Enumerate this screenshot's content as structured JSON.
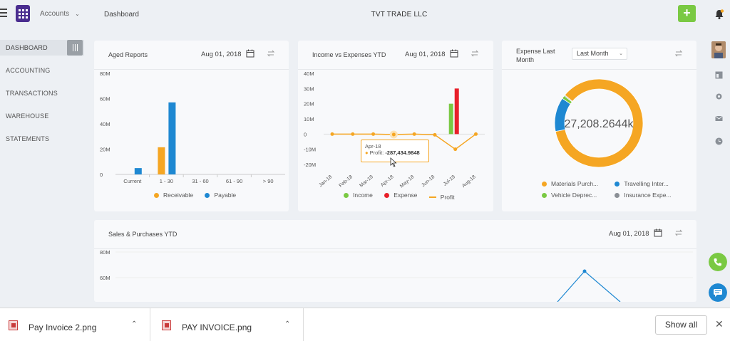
{
  "topbar": {
    "accounts_label": "Accounts",
    "breadcrumb": "Dashboard",
    "company": "TVT TRADE LLC",
    "add_label": "+",
    "accent": "#7ac943",
    "logo_color": "#4a2d8f"
  },
  "sidebar": {
    "items": [
      {
        "label": "DASHBOARD",
        "active": true
      },
      {
        "label": "ACCOUNTING"
      },
      {
        "label": "TRANSACTIONS"
      },
      {
        "label": "WAREHOUSE"
      },
      {
        "label": "STATEMENTS"
      }
    ]
  },
  "aged": {
    "title": "Aged Reports",
    "date": "Aug 01, 2018",
    "legend": [
      {
        "name": "Receivable",
        "color": "#f5a623"
      },
      {
        "name": "Payable",
        "color": "#1e88d2"
      }
    ]
  },
  "income": {
    "title": "Income vs Expenses YTD",
    "date": "Aug 01, 2018",
    "legend": [
      {
        "name": "Income",
        "color": "#7ac943"
      },
      {
        "name": "Expense",
        "color": "#e8202a"
      },
      {
        "name": "Profit",
        "color": "#f5a623"
      }
    ],
    "tooltip": {
      "month": "Apr-18",
      "label": "Profit:",
      "value": "-287,434.9848"
    }
  },
  "expense": {
    "title_line1": "Expense Last",
    "title_line2": "Month",
    "period": "Last Month",
    "center": "27,208.2644k",
    "legend": [
      {
        "name": "Materials Purch...",
        "color": "#f5a623"
      },
      {
        "name": "Travelling Inter...",
        "color": "#1e88d2"
      },
      {
        "name": "Vehicle Deprec...",
        "color": "#7ac943"
      },
      {
        "name": "Insurance Expe...",
        "color": "#8a8f95"
      }
    ]
  },
  "sales": {
    "title": "Sales & Purchases YTD",
    "date": "Aug 01, 2018"
  },
  "downloads": {
    "items": [
      {
        "name": "Pay Invoice 2.png"
      },
      {
        "name": "PAY INVOICE.png"
      }
    ],
    "show_all": "Show all",
    "close": "✕"
  },
  "chart_data": [
    {
      "type": "bar",
      "categories": [
        "Current",
        "1 - 30",
        "31 - 60",
        "61 - 90",
        "> 90"
      ],
      "series": [
        {
          "name": "Receivable",
          "values": [
            0,
            21.5,
            0,
            0,
            0
          ]
        },
        {
          "name": "Payable",
          "values": [
            5,
            57,
            0,
            0,
            0
          ]
        }
      ],
      "ylim": [
        0,
        80
      ],
      "yticks": [
        "0",
        "20M",
        "40M",
        "60M",
        "80M"
      ],
      "legend": "bottom"
    },
    {
      "type": "line",
      "categories": [
        "Jan-18",
        "Feb-18",
        "Mar-18",
        "Apr-18",
        "May-18",
        "Jun-18",
        "Jul-18",
        "Aug-18"
      ],
      "series": [
        {
          "name": "Income",
          "values": [
            0,
            0,
            0,
            0,
            0,
            0,
            20,
            0
          ]
        },
        {
          "name": "Expense",
          "values": [
            0,
            0,
            0.3,
            0,
            0,
            0,
            30,
            0
          ]
        },
        {
          "name": "Profit",
          "values": [
            0,
            0,
            0,
            -0.287,
            0,
            -0.5,
            -10,
            0
          ]
        }
      ],
      "ylim": [
        -20,
        40
      ],
      "yticks": [
        "-20M",
        "-10M",
        "0",
        "10M",
        "20M",
        "30M",
        "40M"
      ],
      "legend": "bottom"
    },
    {
      "type": "pie",
      "donut": true,
      "labels": [
        "Materials Purch...",
        "Travelling Inter...",
        "Vehicle Deprec...",
        "Insurance Expe..."
      ],
      "values": [
        86,
        12.5,
        1.2,
        0.3
      ],
      "center_label": "27,208.2644k",
      "legend": "bottom"
    },
    {
      "type": "line",
      "yticks": [
        "80M",
        "60M"
      ],
      "series": [
        {
          "values": [
            null,
            null,
            65,
            null
          ]
        }
      ]
    }
  ]
}
